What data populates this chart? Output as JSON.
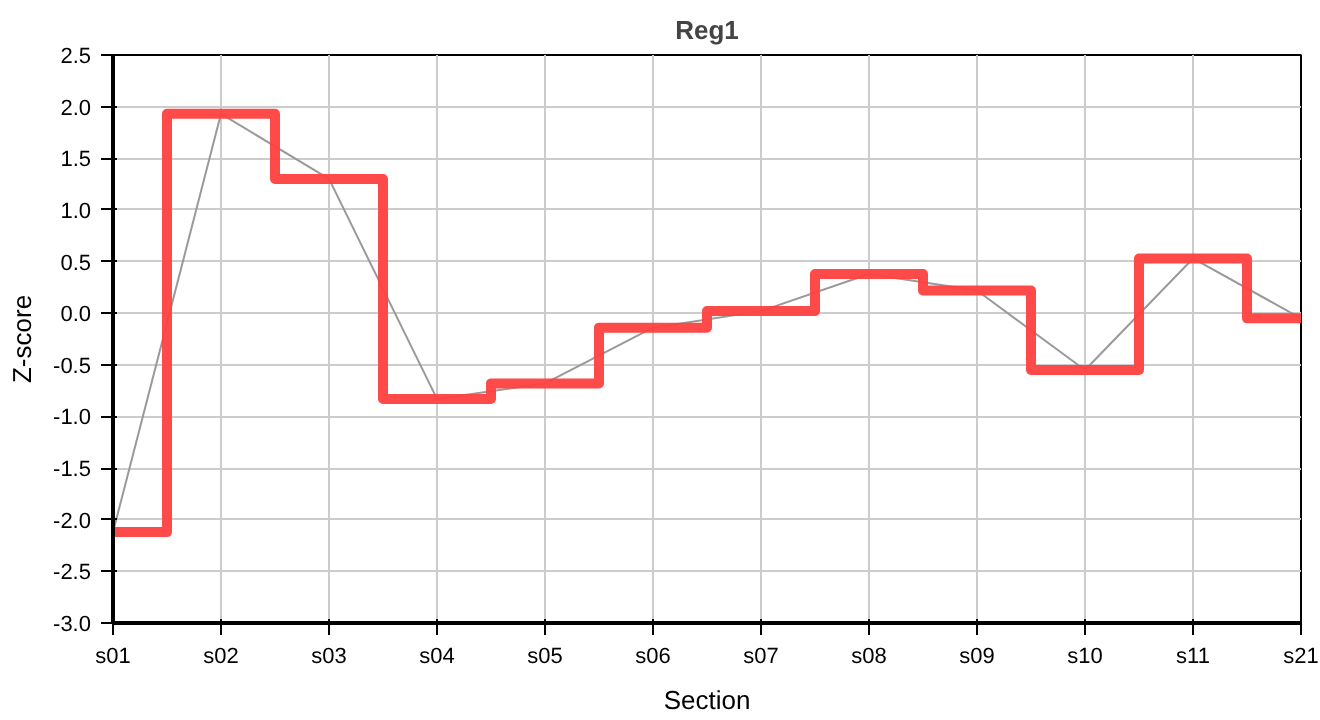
{
  "chart_data": {
    "type": "step",
    "title": "Reg1",
    "xlabel": "Section",
    "ylabel": "Z-score",
    "categories": [
      "s01",
      "s02",
      "s03",
      "s04",
      "s05",
      "s06",
      "s07",
      "s08",
      "s09",
      "s10",
      "s11",
      "s21"
    ],
    "series": [
      {
        "color": "#ff4040",
        "values": [
          -2.12,
          1.93,
          1.3,
          -0.83,
          -0.68,
          -0.14,
          0.02,
          0.38,
          0.22,
          -0.55,
          0.53,
          -0.05
        ]
      },
      {
        "type": "line",
        "color": "#999999",
        "values": [
          -2.12,
          1.93,
          1.3,
          -0.83,
          -0.68,
          -0.14,
          0.02,
          0.38,
          0.22,
          -0.55,
          0.53,
          -0.05
        ]
      }
    ],
    "ylim": [
      -3.0,
      2.5
    ],
    "yticks": [
      {
        "value": -3.0,
        "label": "-3.0"
      },
      {
        "value": -2.5,
        "label": "-2.5"
      },
      {
        "value": -2.0,
        "label": "-2.0"
      },
      {
        "value": -1.5,
        "label": "-1.5"
      },
      {
        "value": -1.0,
        "label": "-1.0"
      },
      {
        "value": -0.5,
        "label": "-0.5"
      },
      {
        "value": 0.0,
        "label": "0.0"
      },
      {
        "value": 0.5,
        "label": "0.5"
      },
      {
        "value": 1.0,
        "label": "1.0"
      },
      {
        "value": 1.5,
        "label": "1.5"
      },
      {
        "value": 2.0,
        "label": "2.0"
      },
      {
        "value": 2.5,
        "label": "2.5"
      }
    ],
    "grid": true,
    "marker": "none"
  }
}
